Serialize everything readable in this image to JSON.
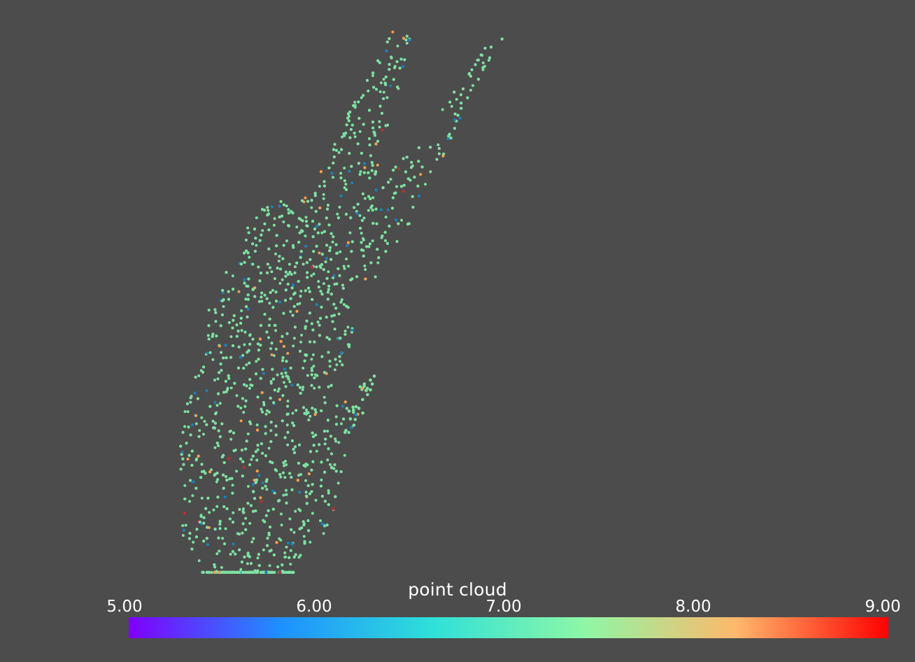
{
  "viewer": {
    "background_color": "#4c4c4c"
  },
  "scene": {
    "object": "bunny",
    "point_colors": {
      "dominant": "#7ee0a0",
      "secondary": [
        "#1f7fb8",
        "#f0a050",
        "#c03030"
      ]
    }
  },
  "scalar_bar": {
    "title": "point cloud",
    "min": 5.0,
    "max": 9.0,
    "ticks": [
      "5.00",
      "6.00",
      "7.00",
      "8.00",
      "9.00"
    ],
    "tick_values": [
      5.0,
      6.0,
      7.0,
      8.0,
      9.0
    ],
    "colormap": "rainbow",
    "colormap_stops": [
      "#7f00ff",
      "#1e90ff",
      "#2fe0d8",
      "#8ef7a6",
      "#ffb86b",
      "#ff0000"
    ]
  }
}
